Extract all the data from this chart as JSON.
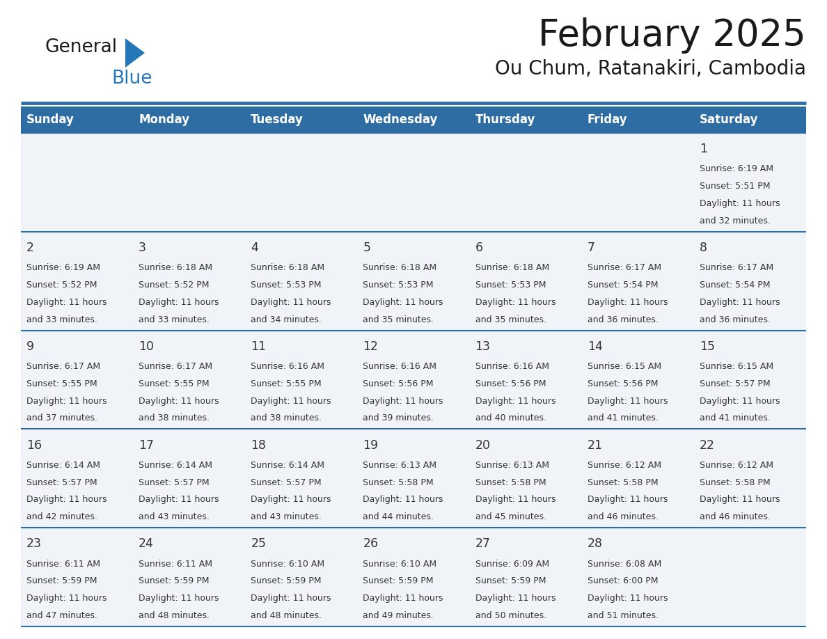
{
  "title": "February 2025",
  "subtitle": "Ou Chum, Ratanakiri, Cambodia",
  "days_of_week": [
    "Sunday",
    "Monday",
    "Tuesday",
    "Wednesday",
    "Thursday",
    "Friday",
    "Saturday"
  ],
  "header_bg": "#2E6DA4",
  "header_text_color": "#FFFFFF",
  "cell_bg": "#F0F4F8",
  "border_color": "#2E6DA4",
  "text_color": "#333333",
  "day_num_color": "#2E6DA4",
  "logo_black_color": "#1a1a1a",
  "logo_blue_color": "#2577B8",
  "title_color": "#1a1a1a",
  "subtitle_color": "#1a1a1a",
  "calendar_data": [
    {
      "day": 1,
      "col": 6,
      "row": 0,
      "sunrise": "6:19 AM",
      "sunset": "5:51 PM",
      "daylight_hours": 11,
      "daylight_minutes": 32
    },
    {
      "day": 2,
      "col": 0,
      "row": 1,
      "sunrise": "6:19 AM",
      "sunset": "5:52 PM",
      "daylight_hours": 11,
      "daylight_minutes": 33
    },
    {
      "day": 3,
      "col": 1,
      "row": 1,
      "sunrise": "6:18 AM",
      "sunset": "5:52 PM",
      "daylight_hours": 11,
      "daylight_minutes": 33
    },
    {
      "day": 4,
      "col": 2,
      "row": 1,
      "sunrise": "6:18 AM",
      "sunset": "5:53 PM",
      "daylight_hours": 11,
      "daylight_minutes": 34
    },
    {
      "day": 5,
      "col": 3,
      "row": 1,
      "sunrise": "6:18 AM",
      "sunset": "5:53 PM",
      "daylight_hours": 11,
      "daylight_minutes": 35
    },
    {
      "day": 6,
      "col": 4,
      "row": 1,
      "sunrise": "6:18 AM",
      "sunset": "5:53 PM",
      "daylight_hours": 11,
      "daylight_minutes": 35
    },
    {
      "day": 7,
      "col": 5,
      "row": 1,
      "sunrise": "6:17 AM",
      "sunset": "5:54 PM",
      "daylight_hours": 11,
      "daylight_minutes": 36
    },
    {
      "day": 8,
      "col": 6,
      "row": 1,
      "sunrise": "6:17 AM",
      "sunset": "5:54 PM",
      "daylight_hours": 11,
      "daylight_minutes": 36
    },
    {
      "day": 9,
      "col": 0,
      "row": 2,
      "sunrise": "6:17 AM",
      "sunset": "5:55 PM",
      "daylight_hours": 11,
      "daylight_minutes": 37
    },
    {
      "day": 10,
      "col": 1,
      "row": 2,
      "sunrise": "6:17 AM",
      "sunset": "5:55 PM",
      "daylight_hours": 11,
      "daylight_minutes": 38
    },
    {
      "day": 11,
      "col": 2,
      "row": 2,
      "sunrise": "6:16 AM",
      "sunset": "5:55 PM",
      "daylight_hours": 11,
      "daylight_minutes": 38
    },
    {
      "day": 12,
      "col": 3,
      "row": 2,
      "sunrise": "6:16 AM",
      "sunset": "5:56 PM",
      "daylight_hours": 11,
      "daylight_minutes": 39
    },
    {
      "day": 13,
      "col": 4,
      "row": 2,
      "sunrise": "6:16 AM",
      "sunset": "5:56 PM",
      "daylight_hours": 11,
      "daylight_minutes": 40
    },
    {
      "day": 14,
      "col": 5,
      "row": 2,
      "sunrise": "6:15 AM",
      "sunset": "5:56 PM",
      "daylight_hours": 11,
      "daylight_minutes": 41
    },
    {
      "day": 15,
      "col": 6,
      "row": 2,
      "sunrise": "6:15 AM",
      "sunset": "5:57 PM",
      "daylight_hours": 11,
      "daylight_minutes": 41
    },
    {
      "day": 16,
      "col": 0,
      "row": 3,
      "sunrise": "6:14 AM",
      "sunset": "5:57 PM",
      "daylight_hours": 11,
      "daylight_minutes": 42
    },
    {
      "day": 17,
      "col": 1,
      "row": 3,
      "sunrise": "6:14 AM",
      "sunset": "5:57 PM",
      "daylight_hours": 11,
      "daylight_minutes": 43
    },
    {
      "day": 18,
      "col": 2,
      "row": 3,
      "sunrise": "6:14 AM",
      "sunset": "5:57 PM",
      "daylight_hours": 11,
      "daylight_minutes": 43
    },
    {
      "day": 19,
      "col": 3,
      "row": 3,
      "sunrise": "6:13 AM",
      "sunset": "5:58 PM",
      "daylight_hours": 11,
      "daylight_minutes": 44
    },
    {
      "day": 20,
      "col": 4,
      "row": 3,
      "sunrise": "6:13 AM",
      "sunset": "5:58 PM",
      "daylight_hours": 11,
      "daylight_minutes": 45
    },
    {
      "day": 21,
      "col": 5,
      "row": 3,
      "sunrise": "6:12 AM",
      "sunset": "5:58 PM",
      "daylight_hours": 11,
      "daylight_minutes": 46
    },
    {
      "day": 22,
      "col": 6,
      "row": 3,
      "sunrise": "6:12 AM",
      "sunset": "5:58 PM",
      "daylight_hours": 11,
      "daylight_minutes": 46
    },
    {
      "day": 23,
      "col": 0,
      "row": 4,
      "sunrise": "6:11 AM",
      "sunset": "5:59 PM",
      "daylight_hours": 11,
      "daylight_minutes": 47
    },
    {
      "day": 24,
      "col": 1,
      "row": 4,
      "sunrise": "6:11 AM",
      "sunset": "5:59 PM",
      "daylight_hours": 11,
      "daylight_minutes": 48
    },
    {
      "day": 25,
      "col": 2,
      "row": 4,
      "sunrise": "6:10 AM",
      "sunset": "5:59 PM",
      "daylight_hours": 11,
      "daylight_minutes": 48
    },
    {
      "day": 26,
      "col": 3,
      "row": 4,
      "sunrise": "6:10 AM",
      "sunset": "5:59 PM",
      "daylight_hours": 11,
      "daylight_minutes": 49
    },
    {
      "day": 27,
      "col": 4,
      "row": 4,
      "sunrise": "6:09 AM",
      "sunset": "5:59 PM",
      "daylight_hours": 11,
      "daylight_minutes": 50
    },
    {
      "day": 28,
      "col": 5,
      "row": 4,
      "sunrise": "6:08 AM",
      "sunset": "6:00 PM",
      "daylight_hours": 11,
      "daylight_minutes": 51
    }
  ]
}
